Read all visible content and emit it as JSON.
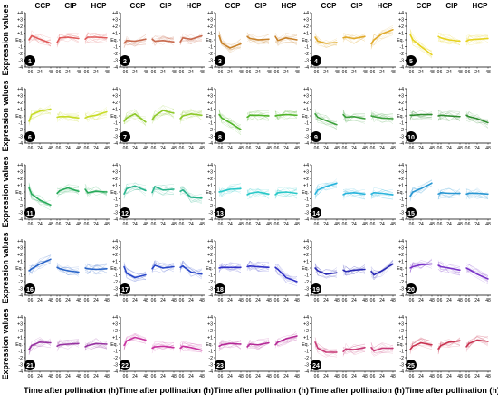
{
  "figure": {
    "ylabel": "Expression values",
    "xlabel": "Time after pollination (h)",
    "group_labels": [
      "CCP",
      "CIP",
      "HCP"
    ],
    "ytick_labels": [
      "+4",
      "+3",
      "+2",
      "+1",
      "Eq.",
      "-1",
      "-2",
      "-3",
      "-4"
    ],
    "xtick_labels": [
      "0",
      "6",
      "24",
      "48"
    ]
  },
  "chart_data": {
    "type": "line",
    "title": "",
    "xlabel": "Time after pollination (h)",
    "ylabel": "Expression values",
    "ylim": [
      -4,
      4
    ],
    "x": [
      0,
      6,
      24,
      48
    ],
    "groups": [
      "CCP",
      "CIP",
      "HCP"
    ],
    "grid": false,
    "legend": "none",
    "clusters": [
      {
        "id": "1",
        "color": "#e05a5a",
        "series": [
          {
            "name": "CCP",
            "values": [
              0,
              0.6,
              0.1,
              -0.5
            ]
          },
          {
            "name": "CIP",
            "values": [
              -0.4,
              0.3,
              0.4,
              0.2
            ]
          },
          {
            "name": "HCP",
            "values": [
              0.1,
              0.4,
              0.4,
              0.3
            ]
          }
        ]
      },
      {
        "id": "2",
        "color": "#c86a4e",
        "series": [
          {
            "name": "CCP",
            "values": [
              -0.5,
              -0.1,
              -0.2,
              0.1
            ]
          },
          {
            "name": "CIP",
            "values": [
              0.1,
              -0.2,
              -0.1,
              -0.3
            ]
          },
          {
            "name": "HCP",
            "values": [
              -0.3,
              0.3,
              0.1,
              0.6
            ]
          }
        ]
      },
      {
        "id": "3",
        "color": "#c8822a",
        "series": [
          {
            "name": "CCP",
            "values": [
              0.6,
              -0.5,
              -1.2,
              -0.6
            ]
          },
          {
            "name": "CIP",
            "values": [
              0.5,
              0.2,
              0.0,
              0.1
            ]
          },
          {
            "name": "HCP",
            "values": [
              0.5,
              -0.1,
              0.3,
              0.0
            ]
          }
        ]
      },
      {
        "id": "4",
        "color": "#e0a92a",
        "series": [
          {
            "name": "CCP",
            "values": [
              0.4,
              -0.2,
              -0.5,
              -0.4
            ]
          },
          {
            "name": "CIP",
            "values": [
              0.3,
              0.4,
              0.2,
              0.5
            ]
          },
          {
            "name": "HCP",
            "values": [
              -0.6,
              0.0,
              0.9,
              1.5
            ]
          }
        ]
      },
      {
        "id": "5",
        "color": "#e6d21e",
        "series": [
          {
            "name": "CCP",
            "values": [
              0.8,
              0.0,
              -1.0,
              -2.2
            ]
          },
          {
            "name": "CIP",
            "values": [
              0.5,
              0.3,
              0.0,
              -0.2
            ]
          },
          {
            "name": "HCP",
            "values": [
              -0.2,
              0.0,
              0.1,
              0.2
            ]
          }
        ]
      },
      {
        "id": "6",
        "color": "#c8dc28",
        "series": [
          {
            "name": "CCP",
            "values": [
              -0.8,
              0.2,
              0.7,
              1.0
            ]
          },
          {
            "name": "CIP",
            "values": [
              -0.2,
              -0.1,
              -0.1,
              -0.3
            ]
          },
          {
            "name": "HCP",
            "values": [
              -0.3,
              -0.1,
              0.1,
              0.6
            ]
          }
        ]
      },
      {
        "id": "7",
        "color": "#8cc828",
        "series": [
          {
            "name": "CCP",
            "values": [
              -0.8,
              -0.3,
              0.3,
              -0.9
            ]
          },
          {
            "name": "CIP",
            "values": [
              -0.6,
              0.0,
              0.8,
              0.4
            ]
          },
          {
            "name": "HCP",
            "values": [
              -0.4,
              0.0,
              0.3,
              0.1
            ]
          }
        ]
      },
      {
        "id": "8",
        "color": "#50b428",
        "series": [
          {
            "name": "CCP",
            "values": [
              0.2,
              -0.3,
              -1.0,
              -2.0
            ]
          },
          {
            "name": "CIP",
            "values": [
              -0.2,
              0.1,
              0.1,
              0.0
            ]
          },
          {
            "name": "HCP",
            "values": [
              0.0,
              0.1,
              0.2,
              0.1
            ]
          }
        ]
      },
      {
        "id": "9",
        "color": "#3ca03c",
        "series": [
          {
            "name": "CCP",
            "values": [
              0.3,
              -0.2,
              -0.7,
              -1.3
            ]
          },
          {
            "name": "CIP",
            "values": [
              0.2,
              -0.2,
              -0.1,
              -0.4
            ]
          },
          {
            "name": "HCP",
            "values": [
              0.0,
              -0.1,
              -0.3,
              -0.4
            ]
          }
        ]
      },
      {
        "id": "10",
        "color": "#2e8c2e",
        "series": [
          {
            "name": "CCP",
            "values": [
              0.1,
              0.1,
              0.2,
              0.2
            ]
          },
          {
            "name": "CIP",
            "values": [
              0.0,
              0.1,
              0.0,
              -0.1
            ]
          },
          {
            "name": "HCP",
            "values": [
              0.1,
              -0.1,
              -0.4,
              -1.0
            ]
          }
        ]
      },
      {
        "id": "11",
        "color": "#28aa5a",
        "series": [
          {
            "name": "CCP",
            "values": [
              0.6,
              -0.3,
              -1.2,
              -1.9
            ]
          },
          {
            "name": "CIP",
            "values": [
              -0.2,
              0.2,
              0.6,
              0.1
            ]
          },
          {
            "name": "HCP",
            "values": [
              0.4,
              -0.1,
              0.1,
              0.0
            ]
          }
        ]
      },
      {
        "id": "12",
        "color": "#28b48c",
        "series": [
          {
            "name": "CCP",
            "values": [
              -0.3,
              0.5,
              0.9,
              0.2
            ]
          },
          {
            "name": "CIP",
            "values": [
              -0.1,
              0.8,
              0.3,
              0.4
            ]
          },
          {
            "name": "HCP",
            "values": [
              0.1,
              0.3,
              -0.8,
              -0.9
            ]
          }
        ]
      },
      {
        "id": "13",
        "color": "#28c8c8",
        "series": [
          {
            "name": "CCP",
            "values": [
              0.0,
              0.1,
              0.4,
              0.5
            ]
          },
          {
            "name": "CIP",
            "values": [
              -0.4,
              -0.2,
              0.0,
              -0.3
            ]
          },
          {
            "name": "HCP",
            "values": [
              -0.4,
              -0.1,
              0.0,
              -0.2
            ]
          }
        ]
      },
      {
        "id": "14",
        "color": "#28b4dc",
        "series": [
          {
            "name": "CCP",
            "values": [
              -0.3,
              0.3,
              0.8,
              1.3
            ]
          },
          {
            "name": "CIP",
            "values": [
              -0.4,
              -0.2,
              -0.1,
              -0.3
            ]
          },
          {
            "name": "HCP",
            "values": [
              -0.3,
              -0.1,
              -0.2,
              -0.4
            ]
          }
        ]
      },
      {
        "id": "15",
        "color": "#2896d2",
        "series": [
          {
            "name": "CCP",
            "values": [
              -0.6,
              0.0,
              0.5,
              1.3
            ]
          },
          {
            "name": "CIP",
            "values": [
              -0.3,
              -0.1,
              -0.2,
              -0.2
            ]
          },
          {
            "name": "HCP",
            "values": [
              -0.3,
              -0.2,
              -0.2,
              -0.3
            ]
          }
        ]
      },
      {
        "id": "16",
        "color": "#2864c8",
        "series": [
          {
            "name": "CCP",
            "values": [
              -0.4,
              -0.1,
              0.6,
              1.3
            ]
          },
          {
            "name": "CIP",
            "values": [
              0.1,
              -0.1,
              -0.4,
              -0.6
            ]
          },
          {
            "name": "HCP",
            "values": [
              0.0,
              -0.1,
              -0.2,
              -0.1
            ]
          }
        ]
      },
      {
        "id": "17",
        "color": "#2846c8",
        "series": [
          {
            "name": "CCP",
            "values": [
              0.2,
              -0.8,
              -1.4,
              -1.0
            ]
          },
          {
            "name": "CIP",
            "values": [
              -0.1,
              0.4,
              0.0,
              0.2
            ]
          },
          {
            "name": "HCP",
            "values": [
              0.1,
              0.3,
              -0.6,
              -0.9
            ]
          }
        ]
      },
      {
        "id": "18",
        "color": "#3232c8",
        "series": [
          {
            "name": "CCP",
            "values": [
              0.0,
              0.1,
              0.1,
              0.1
            ]
          },
          {
            "name": "CIP",
            "values": [
              0.2,
              0.3,
              0.2,
              0.1
            ]
          },
          {
            "name": "HCP",
            "values": [
              0.1,
              -0.2,
              -1.4,
              -2.0
            ]
          }
        ]
      },
      {
        "id": "19",
        "color": "#2828b4",
        "series": [
          {
            "name": "CCP",
            "values": [
              0.0,
              -0.4,
              -0.9,
              -0.7
            ]
          },
          {
            "name": "CIP",
            "values": [
              -0.3,
              -0.5,
              -0.3,
              -0.2
            ]
          },
          {
            "name": "HCP",
            "values": [
              -0.5,
              -1.0,
              -0.4,
              0.6
            ]
          }
        ]
      },
      {
        "id": "20",
        "color": "#7832c8",
        "series": [
          {
            "name": "CCP",
            "values": [
              0.0,
              0.2,
              0.5,
              0.6
            ]
          },
          {
            "name": "CIP",
            "values": [
              0.4,
              0.2,
              0.0,
              -0.3
            ]
          },
          {
            "name": "HCP",
            "values": [
              0.0,
              -0.2,
              -0.9,
              -1.6
            ]
          }
        ]
      },
      {
        "id": "21",
        "color": "#9632a0",
        "series": [
          {
            "name": "CCP",
            "values": [
              -0.8,
              -0.2,
              0.3,
              0.2
            ]
          },
          {
            "name": "CIP",
            "values": [
              -0.3,
              -0.1,
              0.0,
              0.1
            ]
          },
          {
            "name": "HCP",
            "values": [
              -0.4,
              -0.2,
              0.1,
              0.0
            ]
          }
        ]
      },
      {
        "id": "22",
        "color": "#c832a0",
        "series": [
          {
            "name": "CCP",
            "values": [
              -0.2,
              0.5,
              1.0,
              0.6
            ]
          },
          {
            "name": "CIP",
            "values": [
              -0.6,
              -0.4,
              -0.3,
              -0.5
            ]
          },
          {
            "name": "HCP",
            "values": [
              -0.6,
              -0.3,
              -0.5,
              -0.9
            ]
          }
        ]
      },
      {
        "id": "23",
        "color": "#b42896",
        "series": [
          {
            "name": "CCP",
            "values": [
              -0.3,
              -0.1,
              0.1,
              0.0
            ]
          },
          {
            "name": "CIP",
            "values": [
              -0.4,
              0.0,
              -0.1,
              0.2
            ]
          },
          {
            "name": "HCP",
            "values": [
              -0.1,
              0.3,
              0.8,
              1.2
            ]
          }
        ]
      },
      {
        "id": "24",
        "color": "#c83c78",
        "series": [
          {
            "name": "CCP",
            "values": [
              0.3,
              -0.6,
              -1.2,
              -1.2
            ]
          },
          {
            "name": "CIP",
            "values": [
              -1.1,
              -0.7,
              -0.8,
              -0.5
            ]
          },
          {
            "name": "HCP",
            "values": [
              -0.5,
              -1.0,
              -0.6,
              -0.6
            ]
          }
        ]
      },
      {
        "id": "25",
        "color": "#c83250",
        "series": [
          {
            "name": "CCP",
            "values": [
              -0.8,
              -0.3,
              0.2,
              -0.1
            ]
          },
          {
            "name": "CIP",
            "values": [
              -0.7,
              -0.2,
              0.3,
              0.5
            ]
          },
          {
            "name": "HCP",
            "values": [
              -0.4,
              0.1,
              0.6,
              0.4
            ]
          }
        ]
      }
    ]
  }
}
